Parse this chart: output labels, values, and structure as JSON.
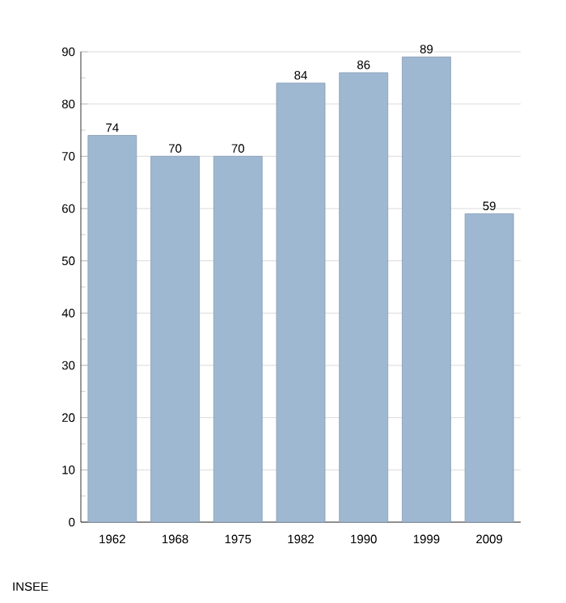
{
  "chart_data": {
    "type": "bar",
    "categories": [
      "1962",
      "1968",
      "1975",
      "1982",
      "1990",
      "1999",
      "2009"
    ],
    "values": [
      74,
      70,
      70,
      84,
      86,
      89,
      59
    ],
    "color": "#9fb8d2",
    "ylim": [
      0,
      90
    ],
    "yticks": [
      0,
      10,
      20,
      30,
      40,
      50,
      60,
      70,
      80,
      90
    ],
    "grid": "y",
    "data_labels": true,
    "annotations": [
      "INSEE"
    ]
  }
}
